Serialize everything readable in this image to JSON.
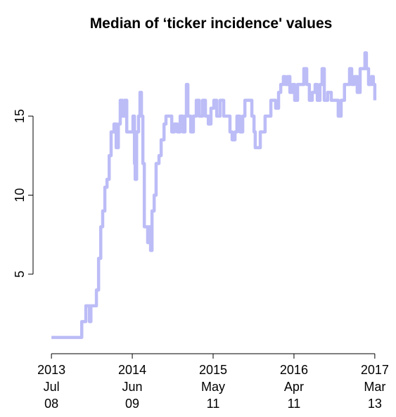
{
  "chart_data": {
    "type": "line",
    "title": "Median of ‘ticker incidence' values",
    "x": [
      "2013-07-08",
      "2013-11-08",
      "2013-11-11",
      "2013-11-25",
      "2013-11-28",
      "2013-12-10",
      "2013-12-13",
      "2013-12-19",
      "2014-01-08",
      "2014-01-11",
      "2014-01-20",
      "2014-01-29",
      "2014-02-06",
      "2014-02-15",
      "2014-02-24",
      "2014-03-05",
      "2014-03-13",
      "2014-03-25",
      "2014-04-03",
      "2014-04-12",
      "2014-04-20",
      "2014-04-29",
      "2014-05-08",
      "2014-05-17",
      "2014-06-03",
      "2014-06-12",
      "2014-06-18",
      "2014-06-21",
      "2014-06-27",
      "2014-07-05",
      "2014-07-11",
      "2014-07-17",
      "2014-07-23",
      "2014-07-29",
      "2014-08-06",
      "2014-08-12",
      "2014-08-18",
      "2014-08-24",
      "2014-08-30",
      "2014-09-08",
      "2014-09-16",
      "2014-09-28",
      "2014-10-07",
      "2014-10-19",
      "2014-10-27",
      "2014-11-11",
      "2014-11-20",
      "2014-12-01",
      "2014-12-13",
      "2014-12-25",
      "2015-01-05",
      "2015-01-14",
      "2015-01-20",
      "2015-01-26",
      "2015-02-07",
      "2015-02-18",
      "2015-03-02",
      "2015-03-14",
      "2015-03-28",
      "2015-04-09",
      "2015-04-21",
      "2015-05-02",
      "2015-05-14",
      "2015-05-26",
      "2015-06-09",
      "2015-06-24",
      "2015-07-09",
      "2015-07-20",
      "2015-07-29",
      "2015-08-10",
      "2015-08-18",
      "2015-08-30",
      "2015-09-11",
      "2015-09-20",
      "2015-10-07",
      "2015-10-19",
      "2015-10-28",
      "2015-11-02",
      "2015-11-14",
      "2015-11-23",
      "2015-12-05",
      "2015-12-13",
      "2015-12-28",
      "2016-01-06",
      "2016-01-17",
      "2016-01-26",
      "2016-02-07",
      "2016-02-16",
      "2016-02-27",
      "2016-03-07",
      "2016-03-16",
      "2016-03-25",
      "2016-04-05",
      "2016-04-14",
      "2016-04-26",
      "2016-05-10",
      "2016-05-22",
      "2016-06-03",
      "2016-06-14",
      "2016-06-26",
      "2016-07-08",
      "2016-07-17",
      "2016-07-28",
      "2016-08-06",
      "2016-08-15",
      "2016-08-29",
      "2016-09-13",
      "2016-10-03",
      "2016-10-12",
      "2016-10-24",
      "2016-11-07",
      "2016-11-22",
      "2016-11-28",
      "2016-12-07",
      "2016-12-18",
      "2016-12-30",
      "2017-01-11",
      "2017-01-22",
      "2017-01-31",
      "2017-02-06",
      "2017-02-15",
      "2017-02-27",
      "2017-03-07",
      "2017-03-13"
    ],
    "series": [
      {
        "color": "#bcbcf7",
        "values": [
          1,
          1,
          2,
          2,
          3,
          3,
          2,
          3,
          3,
          4,
          6,
          8,
          9,
          10.5,
          11,
          12.5,
          14,
          14.5,
          13,
          14.5,
          16,
          15,
          16,
          14,
          14,
          15,
          12,
          11,
          14,
          15,
          16.5,
          15,
          12,
          8,
          8,
          7,
          8,
          6.5,
          9,
          10,
          12,
          12.5,
          13.5,
          14.5,
          15,
          15,
          14,
          14.5,
          14,
          15,
          14,
          15,
          17,
          15,
          14,
          15,
          16,
          15,
          16,
          15,
          14.5,
          15.5,
          16,
          15,
          16,
          15,
          15,
          14,
          13.5,
          14,
          15,
          14,
          15,
          16,
          16,
          15,
          14,
          13,
          13,
          14,
          14,
          15,
          15,
          16,
          16,
          15.5,
          16.5,
          17,
          17.5,
          17,
          17.5,
          16.5,
          17,
          16,
          17,
          17,
          18,
          17,
          16,
          16.5,
          17,
          16,
          17,
          18,
          16,
          16.5,
          16,
          16,
          15,
          16,
          17,
          17,
          18,
          17,
          17.5,
          16.5,
          18,
          18,
          19,
          18,
          17,
          17.5,
          17,
          16
        ]
      }
    ],
    "xlim": [
      "2013-05-16",
      "2017-05-05"
    ],
    "xticks": [
      {
        "value": "2013-07-08",
        "label": [
          "2013",
          "Jul",
          "08"
        ]
      },
      {
        "value": "2014-06-09",
        "label": [
          "2014",
          "Jun",
          "09"
        ]
      },
      {
        "value": "2015-05-11",
        "label": [
          "2015",
          "May",
          "11"
        ]
      },
      {
        "value": "2016-04-11",
        "label": [
          "2016",
          "Apr",
          "11"
        ]
      },
      {
        "value": "2017-03-13",
        "label": [
          "2017",
          "Mar",
          "13"
        ]
      }
    ],
    "ylim": [
      0.28,
      19.72
    ],
    "yticks": [
      5,
      10,
      15
    ]
  }
}
